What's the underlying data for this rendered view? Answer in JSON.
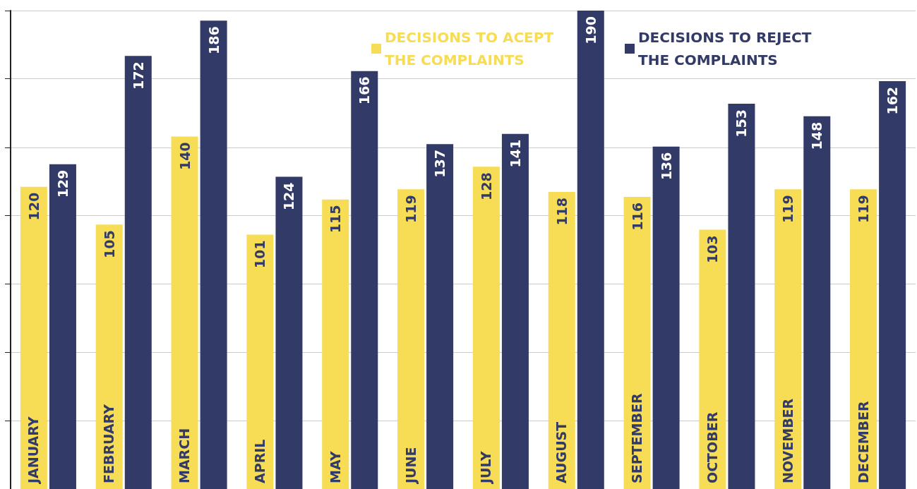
{
  "chart_data": {
    "type": "bar",
    "categories": [
      "JANUARY",
      "FEBRUARY",
      "MARCH",
      "APRIL",
      "MAY",
      "JUNE",
      "JULY",
      "AUGUST",
      "SEPTEMBER",
      "OCTOBER",
      "NOVEMBER",
      "DECEMBER"
    ],
    "series": [
      {
        "name": "DECISIONS TO ACEPT THE COMPLAINTS",
        "color": "#f7dc55",
        "values": [
          120,
          105,
          140,
          101,
          115,
          119,
          128,
          118,
          116,
          103,
          119,
          119
        ]
      },
      {
        "name": "DECISIONS TO REJECT THE COMPLAINTS",
        "color": "#323a68",
        "values": [
          129,
          172,
          186,
          124,
          166,
          137,
          141,
          190,
          136,
          153,
          148,
          162
        ]
      }
    ],
    "ylim": [
      0,
      190
    ],
    "yticks": [
      {
        "value": 27.1,
        "label": null
      },
      {
        "value": 54.3,
        "label": null
      },
      {
        "value": 81.4,
        "label": null
      },
      {
        "value": 108.6,
        "label": null
      },
      {
        "value": 135.7,
        "label": null
      },
      {
        "value": 162.9,
        "label": null
      },
      {
        "value": 190,
        "label": null
      }
    ],
    "tick_labels": "x",
    "grid": "y",
    "legend": "top right",
    "data_labels": true
  }
}
